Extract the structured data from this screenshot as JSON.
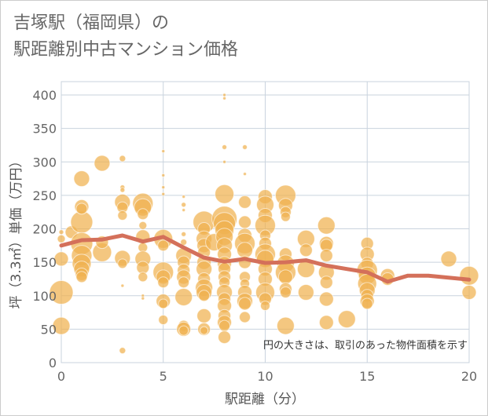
{
  "title": {
    "line1": "吉塚駅（福岡県）の",
    "line2": "駅距離別中古マンション価格"
  },
  "note": "円の大きさは、取引のあった物件面積を示す",
  "colors": {
    "bubble": "#f0b24f",
    "line": "#d4705a",
    "grid": "#c9d3de",
    "background": "#ffffff"
  },
  "chart_data": {
    "type": "scatter",
    "xlabel": "駅距離（分）",
    "ylabel": "坪（3.3㎡）単価（万円）",
    "xlim": [
      0,
      20
    ],
    "ylim": [
      0,
      420
    ],
    "x_ticks": [
      "0",
      "5",
      "10",
      "15",
      "20"
    ],
    "y_ticks": [
      "0",
      "50",
      "100",
      "150",
      "200",
      "250",
      "300",
      "350",
      "400"
    ],
    "grid": true,
    "series": [
      {
        "type": "line",
        "points": [
          [
            0,
            175
          ],
          [
            1,
            183
          ],
          [
            2,
            184
          ],
          [
            3,
            190
          ],
          [
            4,
            181
          ],
          [
            5,
            188
          ],
          [
            6,
            172
          ],
          [
            7,
            157
          ],
          [
            8,
            151
          ],
          [
            9,
            155
          ],
          [
            10,
            149
          ],
          [
            11,
            150
          ],
          [
            12,
            153
          ],
          [
            13,
            145
          ],
          [
            14,
            140
          ],
          [
            15,
            135
          ],
          [
            16,
            121
          ],
          [
            17,
            130
          ],
          [
            18,
            130
          ],
          [
            19,
            127
          ],
          [
            20,
            124
          ]
        ]
      },
      {
        "type": "bubble",
        "points": [
          [
            0,
            105,
            15
          ],
          [
            0,
            55,
            11
          ],
          [
            0,
            155,
            9
          ],
          [
            0,
            185,
            5
          ],
          [
            0,
            195,
            3
          ],
          [
            0.5,
            195,
            8
          ],
          [
            1,
            210,
            14
          ],
          [
            1,
            178,
            14
          ],
          [
            1,
            160,
            13
          ],
          [
            1,
            148,
            12
          ],
          [
            1,
            140,
            10
          ],
          [
            1,
            132,
            8
          ],
          [
            1,
            128,
            7
          ],
          [
            1,
            233,
            9
          ],
          [
            1,
            230,
            7
          ],
          [
            1,
            275,
            10
          ],
          [
            2,
            298,
            10
          ],
          [
            2,
            165,
            12
          ],
          [
            2,
            180,
            8
          ],
          [
            3,
            305,
            4
          ],
          [
            3,
            262,
            3
          ],
          [
            3,
            258,
            3
          ],
          [
            3,
            240,
            10
          ],
          [
            3,
            232,
            7
          ],
          [
            3,
            220,
            6
          ],
          [
            3,
            156,
            10
          ],
          [
            3,
            148,
            6
          ],
          [
            3,
            115,
            2
          ],
          [
            3,
            18,
            4
          ],
          [
            4,
            238,
            13
          ],
          [
            4,
            232,
            11
          ],
          [
            4,
            222,
            7
          ],
          [
            4,
            205,
            5
          ],
          [
            4,
            188,
            9
          ],
          [
            4,
            172,
            6
          ],
          [
            4,
            155,
            10
          ],
          [
            4,
            142,
            8
          ],
          [
            4,
            128,
            6
          ],
          [
            4,
            100,
            2
          ],
          [
            4,
            96,
            2
          ],
          [
            5,
            316,
            2
          ],
          [
            5,
            280,
            2
          ],
          [
            5,
            262,
            2
          ],
          [
            5,
            252,
            2
          ],
          [
            5,
            185,
            12
          ],
          [
            5,
            175,
            7
          ],
          [
            5,
            135,
            13
          ],
          [
            5,
            128,
            9
          ],
          [
            5,
            120,
            7
          ],
          [
            5,
            92,
            9
          ],
          [
            5,
            88,
            6
          ],
          [
            5,
            64,
            6
          ],
          [
            6,
            248,
            2
          ],
          [
            6,
            236,
            3
          ],
          [
            6,
            228,
            2
          ],
          [
            6,
            192,
            3
          ],
          [
            6,
            180,
            4
          ],
          [
            6,
            160,
            10
          ],
          [
            6,
            150,
            8
          ],
          [
            6,
            138,
            8
          ],
          [
            6,
            128,
            9
          ],
          [
            6,
            120,
            7
          ],
          [
            6,
            98,
            11
          ],
          [
            6,
            55,
            7
          ],
          [
            6,
            50,
            9
          ],
          [
            6,
            48,
            6
          ],
          [
            7,
            210,
            14
          ],
          [
            7,
            200,
            8
          ],
          [
            7,
            185,
            10
          ],
          [
            7,
            175,
            9
          ],
          [
            7,
            165,
            8
          ],
          [
            7,
            150,
            9
          ],
          [
            7,
            140,
            10
          ],
          [
            7,
            125,
            8
          ],
          [
            7,
            112,
            11
          ],
          [
            7,
            105,
            10
          ],
          [
            7,
            100,
            7
          ],
          [
            7,
            70,
            9
          ],
          [
            7,
            50,
            8
          ],
          [
            7,
            48,
            5
          ],
          [
            7.5,
            180,
            11
          ],
          [
            8,
            400,
            2
          ],
          [
            8,
            395,
            2
          ],
          [
            8,
            322,
            3
          ],
          [
            8,
            300,
            2
          ],
          [
            8,
            252,
            12
          ],
          [
            8,
            215,
            16
          ],
          [
            8,
            208,
            14
          ],
          [
            8,
            198,
            12
          ],
          [
            8,
            188,
            11
          ],
          [
            8,
            175,
            10
          ],
          [
            8,
            162,
            9
          ],
          [
            8,
            148,
            9
          ],
          [
            8,
            140,
            8
          ],
          [
            8,
            128,
            8
          ],
          [
            8,
            120,
            7
          ],
          [
            8,
            105,
            10
          ],
          [
            8,
            95,
            8
          ],
          [
            8,
            85,
            9
          ],
          [
            8,
            70,
            8
          ],
          [
            8,
            60,
            9
          ],
          [
            8,
            55,
            7
          ],
          [
            8,
            38,
            8
          ],
          [
            9,
            322,
            3
          ],
          [
            9,
            282,
            2
          ],
          [
            9,
            240,
            8
          ],
          [
            9,
            210,
            8
          ],
          [
            9,
            190,
            9
          ],
          [
            9,
            178,
            13
          ],
          [
            9,
            168,
            10
          ],
          [
            9,
            150,
            8
          ],
          [
            9,
            128,
            7
          ],
          [
            9,
            118,
            6
          ],
          [
            9,
            105,
            9
          ],
          [
            9,
            92,
            10
          ],
          [
            9,
            88,
            8
          ],
          [
            9,
            68,
            7
          ],
          [
            10,
            248,
            9
          ],
          [
            10,
            236,
            11
          ],
          [
            10,
            220,
            9
          ],
          [
            10,
            205,
            13
          ],
          [
            10,
            190,
            7
          ],
          [
            10,
            178,
            8
          ],
          [
            10,
            162,
            13
          ],
          [
            10,
            155,
            11
          ],
          [
            10,
            140,
            9
          ],
          [
            10,
            125,
            9
          ],
          [
            10,
            105,
            12
          ],
          [
            10,
            95,
            8
          ],
          [
            10,
            85,
            6
          ],
          [
            11,
            250,
            13
          ],
          [
            11,
            235,
            9
          ],
          [
            11,
            225,
            7
          ],
          [
            11,
            218,
            6
          ],
          [
            11,
            162,
            8
          ],
          [
            11,
            148,
            11
          ],
          [
            11,
            135,
            13
          ],
          [
            11,
            128,
            9
          ],
          [
            11,
            110,
            8
          ],
          [
            11,
            105,
            7
          ],
          [
            11,
            55,
            11
          ],
          [
            12,
            185,
            11
          ],
          [
            12,
            168,
            8
          ],
          [
            12,
            140,
            11
          ],
          [
            12,
            105,
            10
          ],
          [
            13,
            205,
            11
          ],
          [
            13,
            178,
            9
          ],
          [
            13,
            175,
            8
          ],
          [
            13,
            160,
            8
          ],
          [
            13,
            135,
            10
          ],
          [
            13,
            120,
            8
          ],
          [
            13,
            95,
            9
          ],
          [
            13,
            60,
            9
          ],
          [
            14,
            65,
            11
          ],
          [
            15,
            178,
            8
          ],
          [
            15,
            162,
            9
          ],
          [
            15,
            148,
            8
          ],
          [
            15,
            138,
            13
          ],
          [
            15,
            130,
            11
          ],
          [
            15,
            118,
            12
          ],
          [
            15,
            108,
            10
          ],
          [
            15,
            100,
            8
          ],
          [
            15,
            92,
            9
          ],
          [
            15,
            88,
            7
          ],
          [
            16,
            130,
            9
          ],
          [
            16,
            125,
            8
          ],
          [
            19,
            155,
            10
          ],
          [
            20,
            130,
            12
          ],
          [
            20,
            105,
            9
          ]
        ]
      }
    ]
  }
}
